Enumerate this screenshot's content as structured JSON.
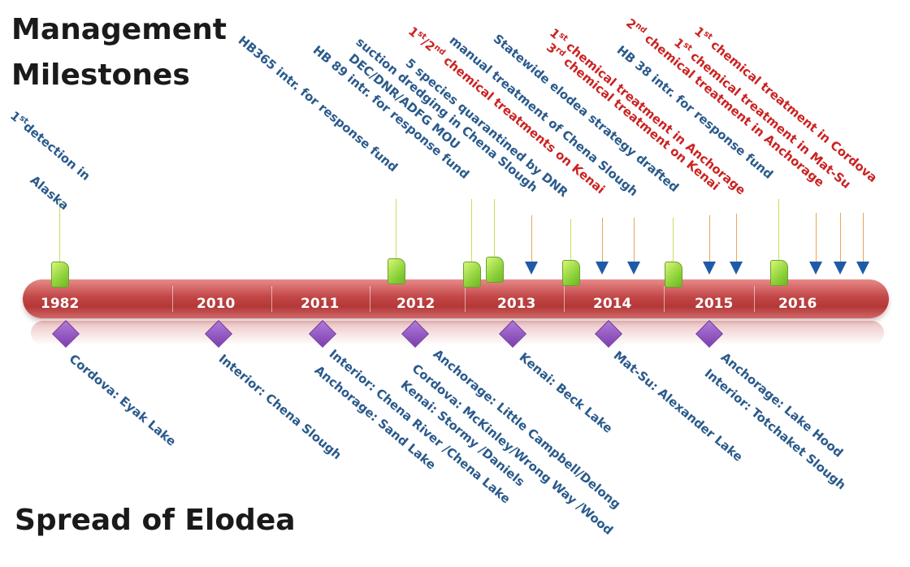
{
  "headings": {
    "top": [
      "Management",
      "Milestones"
    ],
    "bottom": "Spread of Elodea"
  },
  "colors": {
    "timeline": "#c24646",
    "milestone_text": "#2a5a8c",
    "treatment_text": "#cc2222",
    "marker_block": "#8ed23a",
    "marker_arrow": "#1f5aa8",
    "spread_marker": "#7c3fb0"
  },
  "years": [
    "1982",
    "2010",
    "2011",
    "2012",
    "2013",
    "2014",
    "2015",
    "2016"
  ],
  "milestones": [
    {
      "sup": "st",
      "pre": "1",
      "text": "detection in"
    },
    {
      "text": "Alaska"
    },
    {
      "text": "HB365 intr. for response fund"
    },
    {
      "text": "HB 89 intr. for response fund"
    },
    {
      "text": "DEC/DNR/ADFG MOU"
    },
    {
      "text": "suction dredging in Chena Slough"
    },
    {
      "text": "5 species quarantined by DNR"
    },
    {
      "pre": "1",
      "sup": "st",
      "mid": "/2",
      "sup2": "nd",
      "text": " chemical treatments on Kenai"
    },
    {
      "text": "manual treatment of Chena Slough"
    },
    {
      "text": "Statewide elodea strategy drafted"
    },
    {
      "pre": "3",
      "sup": "rd",
      "text": " chemical treatment on Kenai"
    },
    {
      "pre": "1",
      "sup": "st",
      "text": " chemical treatment in Anchorage"
    },
    {
      "text": "HB 38 intr. for response fund"
    },
    {
      "pre": "2",
      "sup": "nd",
      "text": " chemical treatment in Anchorage"
    },
    {
      "pre": "1",
      "sup": "st",
      "text": " chemical treatment in Mat-Su"
    },
    {
      "pre": "1",
      "sup": "st",
      "text": " chemical treatment in Cordova"
    }
  ],
  "spread": [
    {
      "text": "Cordova: Eyak Lake"
    },
    {
      "text": "Interior: Chena Slough"
    },
    {
      "text": "Interior: Chena River /Chena Lake"
    },
    {
      "text": "Anchorage: Sand Lake"
    },
    {
      "text": "Anchorage: Little Campbell/Delong"
    },
    {
      "text": "Cordova: McKinley/Wrong Way /Wood"
    },
    {
      "text": "Kenai: Stormy /Daniels"
    },
    {
      "text": "Kenai: Beck Lake"
    },
    {
      "text": "Mat-Su: Alexander Lake"
    },
    {
      "text": "Anchorage: Lake Hood"
    },
    {
      "text": "Interior: Totchaket Slough"
    }
  ]
}
